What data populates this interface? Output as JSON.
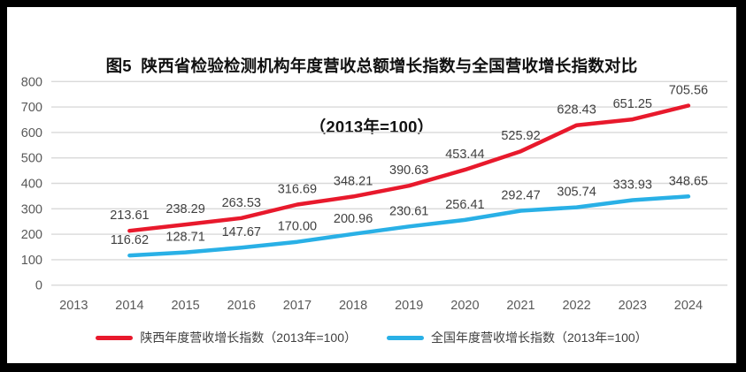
{
  "title": {
    "line1": "图5  陕西省检验检测机构年度营收总额增长指数与全国营收增长指数对比",
    "line2": "（2013年=100）"
  },
  "chart_data": {
    "type": "line",
    "title": "图5 陕西省检验检测机构年度营收总额增长指数与全国营收增长指数对比（2013年=100）",
    "categories": [
      "2013",
      "2014",
      "2015",
      "2016",
      "2017",
      "2018",
      "2019",
      "2020",
      "2021",
      "2022",
      "2023",
      "2024"
    ],
    "xlabel": "",
    "ylabel": "",
    "ylim": [
      0,
      800
    ],
    "y_ticks": [
      0,
      100,
      200,
      300,
      400,
      500,
      600,
      700,
      800
    ],
    "grid": true,
    "legend_position": "bottom",
    "series": [
      {
        "name": "陕西年度营收增长指数（2013年=100）",
        "color": "#e8192c",
        "start_category_index": 1,
        "values": [
          213.61,
          238.29,
          263.53,
          316.69,
          348.21,
          390.63,
          453.44,
          525.92,
          628.43,
          651.25,
          705.56
        ],
        "labels": [
          "213.61",
          "238.29",
          "263.53",
          "316.69",
          "348.21",
          "390.63",
          "453.44",
          "525.92",
          "628.43",
          "651.25",
          "705.56"
        ]
      },
      {
        "name": "全国年度营收增长指数（2013年=100）",
        "color": "#29b0e6",
        "start_category_index": 1,
        "values": [
          116.62,
          128.71,
          147.67,
          170.0,
          200.96,
          230.61,
          256.41,
          292.47,
          305.74,
          333.93,
          348.65
        ],
        "labels": [
          "116.62",
          "128.71",
          "147.67",
          "170.00",
          "200.96",
          "230.61",
          "256.41",
          "292.47",
          "305.74",
          "333.93",
          "348.65"
        ]
      }
    ]
  },
  "colors": {
    "grid": "#d9d9d9",
    "tick_text": "#595959",
    "data_label_text": "#404040",
    "title_text": "#111111",
    "background": "#ffffff",
    "frame": "#000000"
  }
}
